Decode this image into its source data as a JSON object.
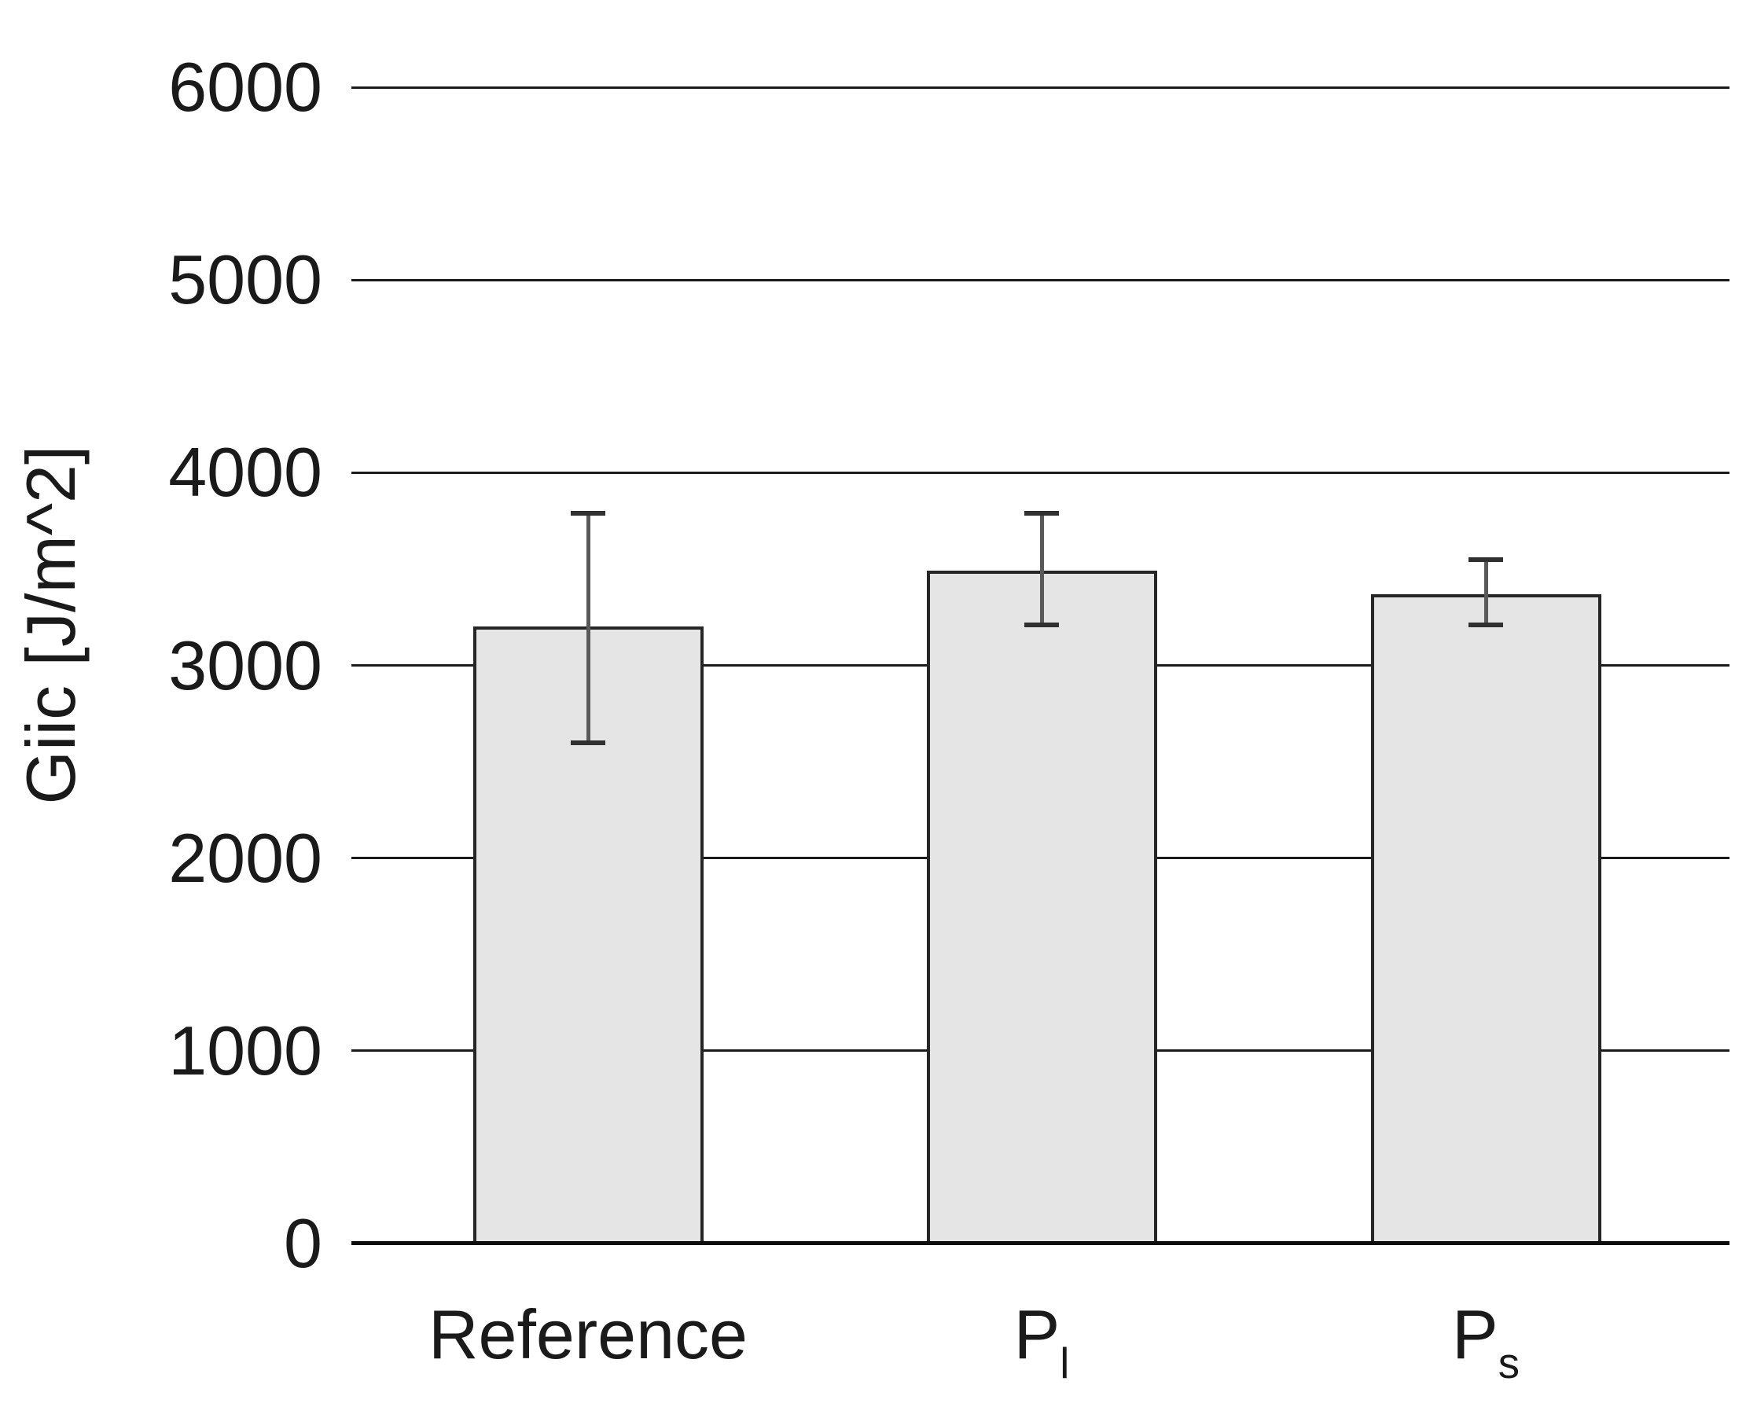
{
  "chart_data": {
    "type": "bar",
    "title": "",
    "ylabel": "Giic [J/m^2]",
    "xlabel": "",
    "ylim": [
      0,
      6000
    ],
    "yticks": [
      0,
      1000,
      2000,
      3000,
      4000,
      5000,
      6000
    ],
    "grid": "horizontal-gridlines",
    "legend_position": "none",
    "categories": [
      {
        "label": "Reference",
        "sub": ""
      },
      {
        "label": "P",
        "sub": "l"
      },
      {
        "label": "P",
        "sub": "s"
      }
    ],
    "series": [
      {
        "name": "Giic",
        "values": [
          3200,
          3490,
          3370
        ],
        "error_top": [
          3790,
          3790,
          3550
        ],
        "error_bottom": [
          2600,
          3210,
          3210
        ]
      }
    ],
    "colors": {
      "background": "#ffffff",
      "bar_fill": "#e6e5e6",
      "bar_border": "#262626",
      "gridline": "#1a1a1a",
      "axis_line": "#0d0d0d",
      "error_line": "#595959",
      "error_cap": "#303030",
      "text": "#1a1a1a"
    }
  }
}
